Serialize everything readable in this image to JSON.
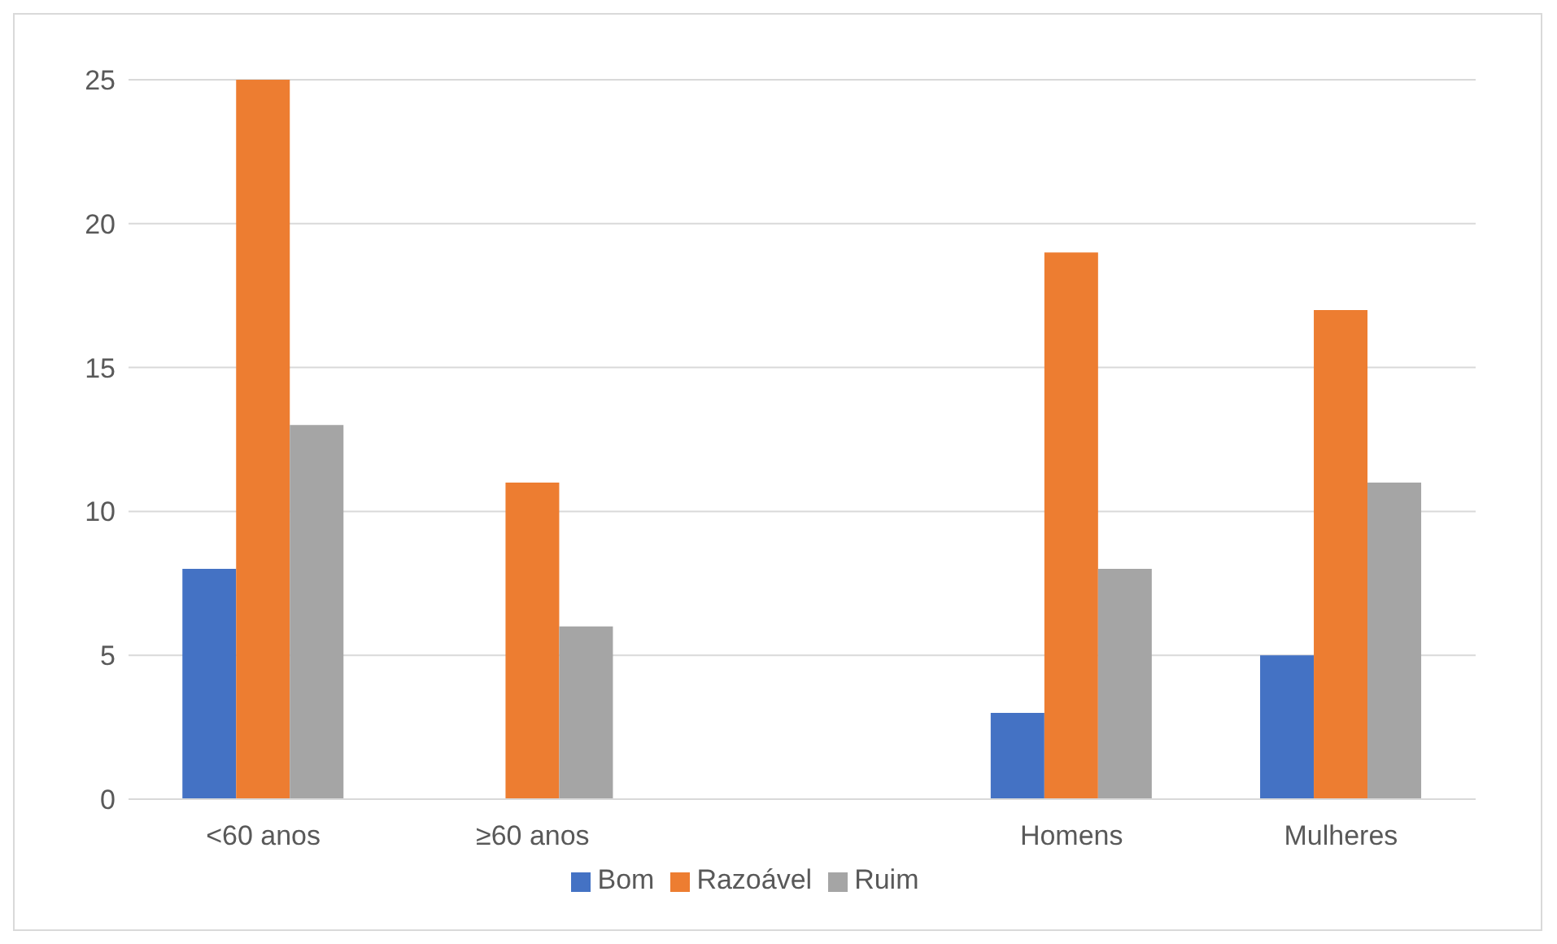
{
  "chart_data": {
    "type": "bar",
    "categories": [
      "<60 anos",
      "≥60 anos",
      null,
      "Homens",
      "Mulheres"
    ],
    "series": [
      {
        "name": "Bom",
        "color": "#4472c4",
        "values": [
          8,
          0,
          null,
          3,
          5
        ]
      },
      {
        "name": "Razoável",
        "color": "#ed7d31",
        "values": [
          25,
          11,
          null,
          19,
          17
        ]
      },
      {
        "name": "Ruim",
        "color": "#a5a5a5",
        "values": [
          13,
          6,
          null,
          8,
          11
        ]
      }
    ],
    "ylim": [
      0,
      25
    ],
    "yticks": [
      0,
      5,
      10,
      15,
      20,
      25
    ],
    "grid": "y",
    "legend": "bottom"
  }
}
